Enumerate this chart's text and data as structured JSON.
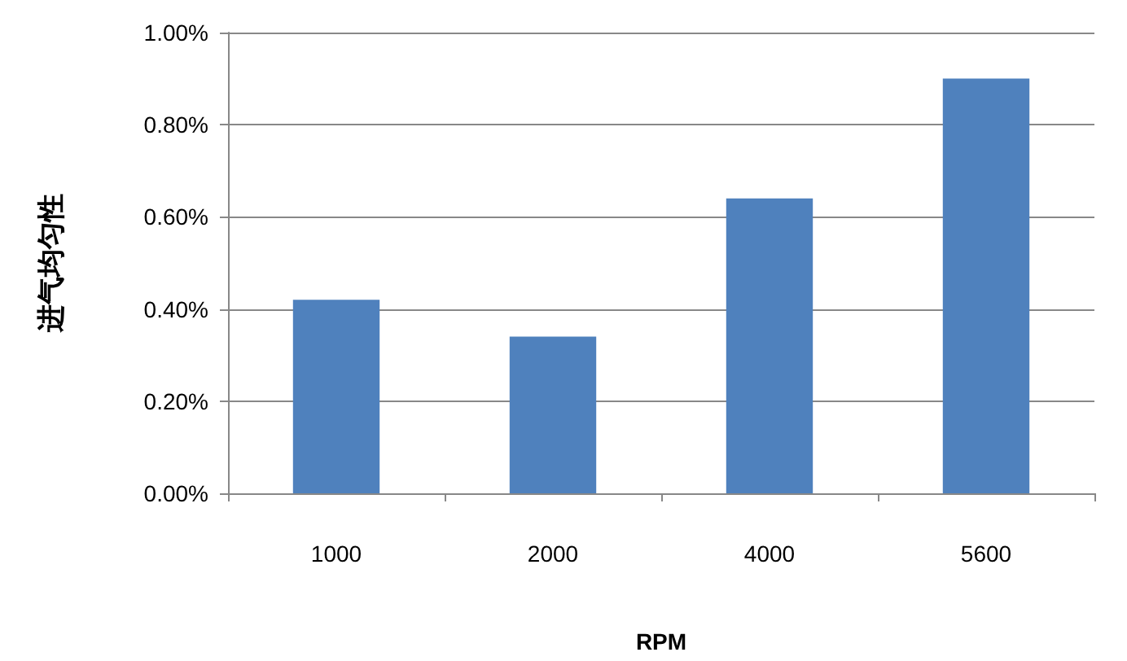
{
  "chart_data": {
    "type": "bar",
    "xlabel": "RPM",
    "ylabel": "进气均匀性",
    "categories": [
      "1000",
      "2000",
      "4000",
      "5600"
    ],
    "values": [
      0.42,
      0.34,
      0.64,
      0.9
    ],
    "color": "#4f81bd",
    "ylim": [
      0,
      1
    ],
    "yticks": [
      {
        "value": 0,
        "label": "0.00%"
      },
      {
        "value": 0.2,
        "label": "0.20%"
      },
      {
        "value": 0.4,
        "label": "0.40%"
      },
      {
        "value": 0.6,
        "label": "0.60%"
      },
      {
        "value": 0.8,
        "label": "0.80%"
      },
      {
        "value": 1,
        "label": "1.00%"
      }
    ],
    "grid": "y"
  }
}
